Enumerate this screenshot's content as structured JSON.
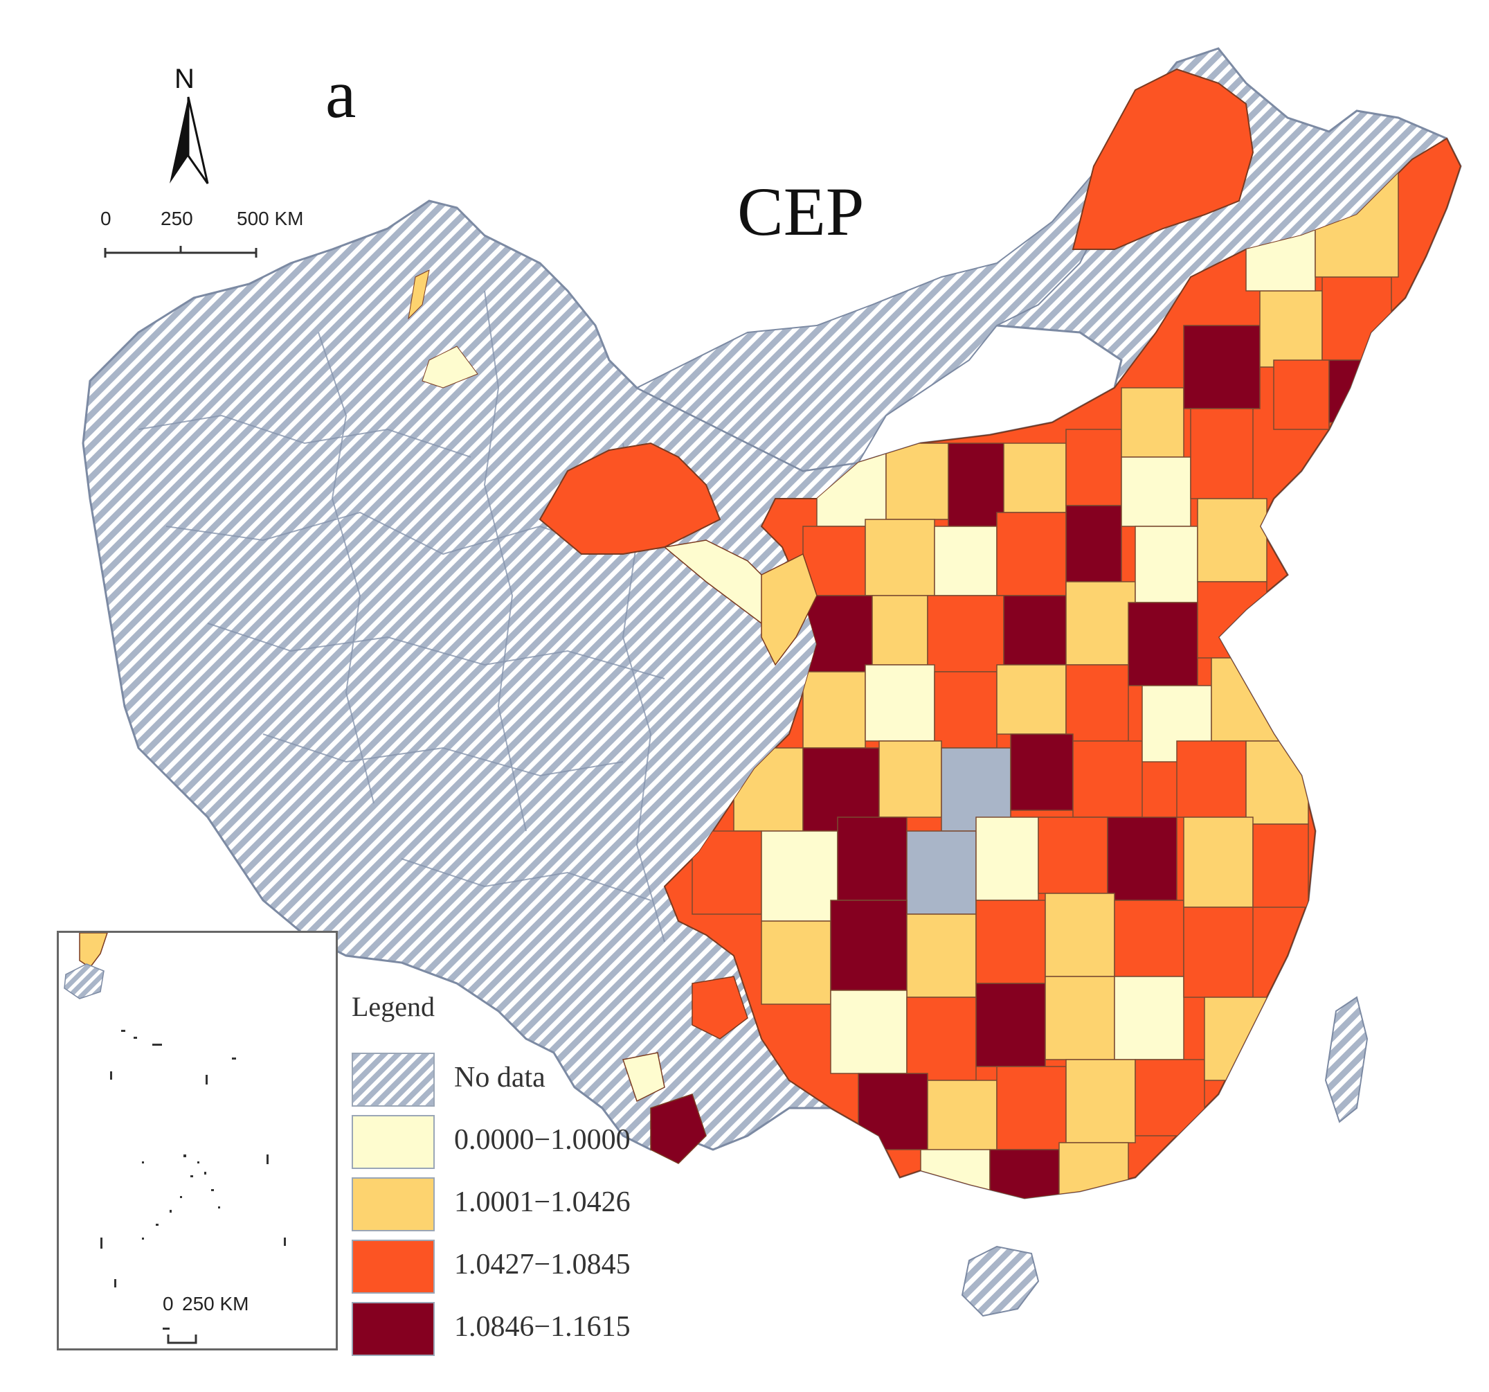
{
  "panel_letter": "a",
  "title": "CEP",
  "north_arrow": {
    "label": "N",
    "icon": "north-arrow-icon"
  },
  "scale_bar": {
    "ticks": [
      "0",
      "250",
      "500 KM"
    ]
  },
  "inset_scale_bar": {
    "ticks": [
      "0",
      "250 KM"
    ]
  },
  "legend": {
    "title": "Legend",
    "items": [
      {
        "label": "No data",
        "color": "#a9b5c8",
        "pattern": "diagonal-hatch"
      },
      {
        "label": "0.0000−1.0000",
        "color": "#fefccf"
      },
      {
        "label": "1.0001−1.0426",
        "color": "#fdd36f"
      },
      {
        "label": "1.0427−1.0845",
        "color": "#fc5423"
      },
      {
        "label": "1.0846−1.1615",
        "color": "#850020"
      }
    ]
  },
  "colors": {
    "no_data_fill": "#a9b5c8",
    "boundary": "#7c8aa3"
  }
}
